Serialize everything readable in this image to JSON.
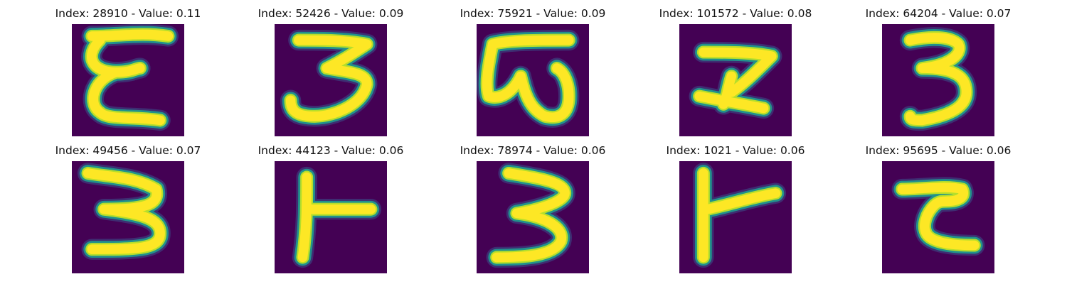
{
  "colors": {
    "background": "#440154",
    "stroke_core": "#fde725",
    "stroke_mid": "#b5de2b",
    "stroke_edge": "#21918c",
    "stroke_halo": "#3b528b"
  },
  "panels": [
    {
      "title": "Index: 28910 - Value: 0.11",
      "glyph": "epsilon-3"
    },
    {
      "title": "Index: 52426 - Value: 0.09",
      "glyph": "three"
    },
    {
      "title": "Index: 75921 - Value: 0.09",
      "glyph": "omega-3"
    },
    {
      "title": "Index: 101572 - Value: 0.08",
      "glyph": "z-shape"
    },
    {
      "title": "Index: 64204 - Value: 0.07",
      "glyph": "three"
    },
    {
      "title": "Index: 49456 - Value: 0.07",
      "glyph": "three"
    },
    {
      "title": "Index: 44123 - Value: 0.06",
      "glyph": "t-right"
    },
    {
      "title": "Index: 78974 - Value: 0.06",
      "glyph": "three"
    },
    {
      "title": "Index: 1021 - Value: 0.06",
      "glyph": "t-right"
    },
    {
      "title": "Index: 95695 - Value: 0.06",
      "glyph": "t-curl"
    }
  ]
}
